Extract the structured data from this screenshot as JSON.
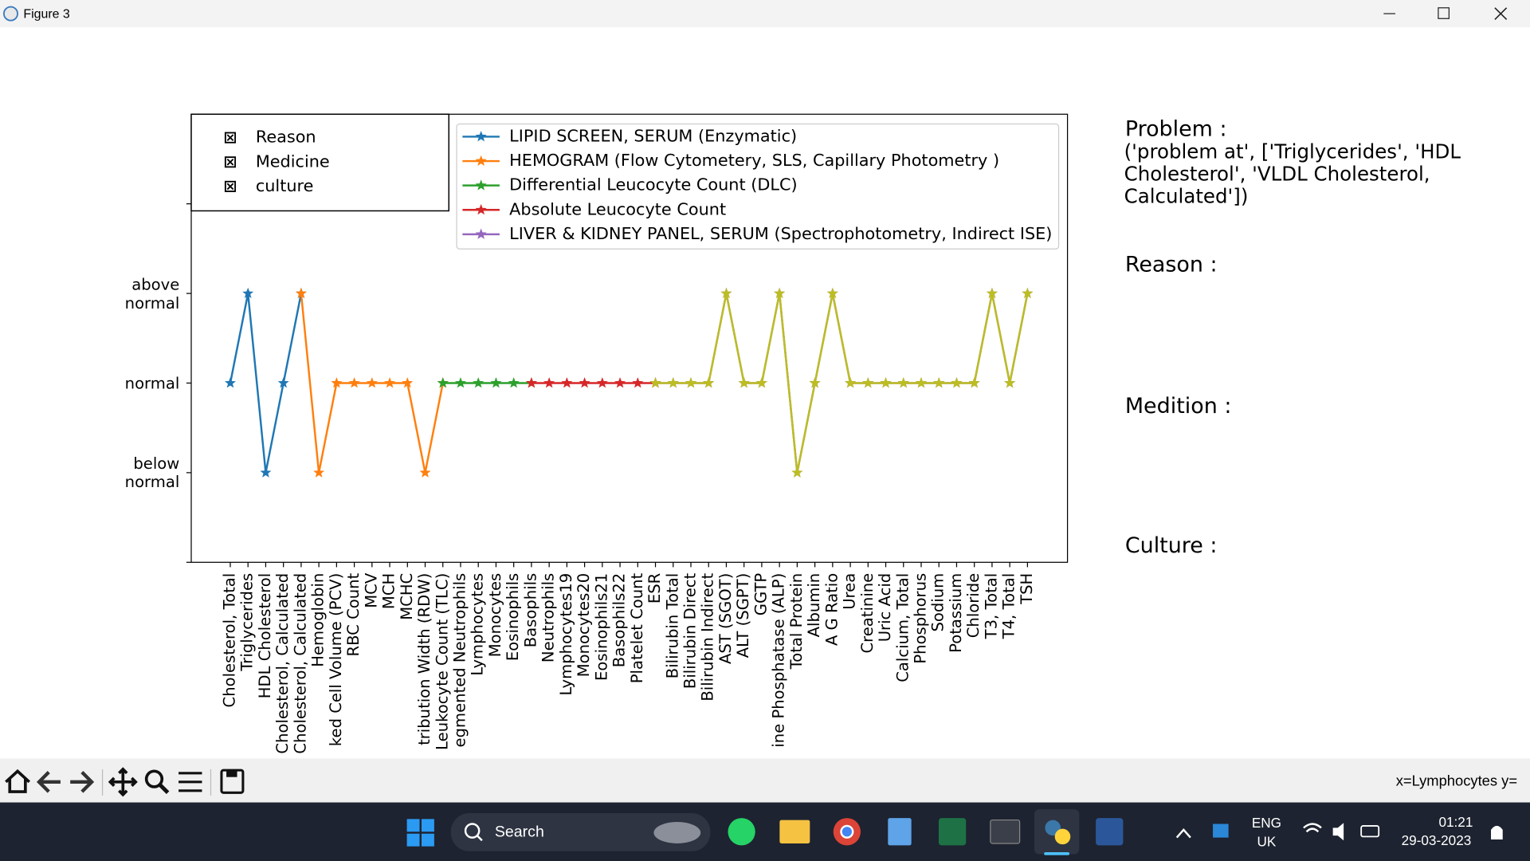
{
  "window": {
    "title": "Figure 3"
  },
  "chart_data": {
    "type": "line",
    "categories": [
      "Cholesterol, Total",
      "Triglycerides",
      "HDL Cholesterol",
      "Cholesterol, Calculated",
      "Cholesterol, Calculated",
      "Hemoglobin",
      "ked Cell Volume (PCV)",
      "RBC Count",
      "MCV",
      "MCH",
      "MCHC",
      "tribution Width (RDW)",
      "Leukocyte Count (TLC)",
      "egmented Neutrophils",
      "Lymphocytes",
      "Monocytes",
      "Eosinophils",
      "Basophils",
      "Neutrophils",
      "Lymphocytes19",
      "Monocytes20",
      "Eosinophils21",
      "Basophils22",
      "Platelet Count",
      "ESR",
      "Bilirubin Total",
      "Bilirubin Direct",
      "Bilirubin Indirect",
      "AST (SGOT)",
      "ALT (SGPT)",
      "GGTP",
      "ine Phosphatase (ALP)",
      "Total Protein",
      "Albumin",
      "A   G Ratio",
      "Urea",
      "Creatinine",
      "Uric Acid",
      "Calcium, Total",
      "Phosphorus",
      "Sodium",
      "Potassium",
      "Chloride",
      "T3, Total",
      "T4, Total",
      "TSH"
    ],
    "series": [
      {
        "name": "LIPID SCREEN, SERUM (Enzymatic)",
        "color": "#1f77b4",
        "values": [
          0,
          1,
          -1,
          0,
          1,
          null,
          null,
          null,
          null,
          null,
          null,
          null,
          null,
          null,
          null,
          null,
          null,
          null,
          null,
          null,
          null,
          null,
          null,
          null,
          null,
          null,
          null,
          null,
          null,
          null,
          null,
          null,
          null,
          null,
          null,
          null,
          null,
          null,
          null,
          null,
          null,
          null,
          null,
          null,
          null,
          null
        ]
      },
      {
        "name": "HEMOGRAM (Flow Cytometery, SLS, Capillary Photometry )",
        "color": "#ff7f0e",
        "values": [
          null,
          null,
          null,
          null,
          1,
          -1,
          0,
          0,
          0,
          0,
          0,
          -1,
          0,
          null,
          null,
          null,
          null,
          null,
          null,
          null,
          null,
          null,
          null,
          null,
          null,
          null,
          null,
          null,
          null,
          null,
          null,
          null,
          null,
          null,
          null,
          null,
          null,
          null,
          null,
          null,
          null,
          null,
          null,
          null,
          null,
          null
        ]
      },
      {
        "name": "Differential Leucocyte Count (DLC)",
        "color": "#2ca02c",
        "values": [
          null,
          null,
          null,
          null,
          null,
          null,
          null,
          null,
          null,
          null,
          null,
          null,
          0,
          0,
          0,
          0,
          0,
          0,
          null,
          null,
          null,
          null,
          null,
          null,
          null,
          null,
          null,
          null,
          null,
          null,
          null,
          null,
          null,
          null,
          null,
          null,
          null,
          null,
          null,
          null,
          null,
          null,
          null,
          null,
          null,
          null
        ]
      },
      {
        "name": "Absolute Leucocyte Count",
        "color": "#d62728",
        "values": [
          null,
          null,
          null,
          null,
          null,
          null,
          null,
          null,
          null,
          null,
          null,
          null,
          null,
          null,
          null,
          null,
          null,
          0,
          0,
          0,
          0,
          0,
          0,
          0,
          0,
          null,
          null,
          null,
          null,
          null,
          null,
          null,
          null,
          null,
          null,
          null,
          null,
          null,
          null,
          null,
          null,
          null,
          null,
          null,
          null,
          null
        ]
      },
      {
        "name": "LIVER & KIDNEY PANEL, SERUM (Spectrophotometry, Indirect ISE)",
        "color": "#9467bd",
        "values": [
          null,
          null,
          null,
          null,
          null,
          null,
          null,
          null,
          null,
          null,
          null,
          null,
          null,
          null,
          null,
          null,
          null,
          null,
          null,
          null,
          null,
          null,
          null,
          null,
          0,
          0,
          0,
          0,
          1,
          0,
          0,
          1,
          -1,
          0,
          1,
          0,
          0,
          0,
          0,
          0,
          0,
          0,
          0,
          1,
          0,
          1
        ]
      },
      {
        "color": "#bcbd22",
        "values": [
          null,
          null,
          null,
          null,
          null,
          null,
          null,
          null,
          null,
          null,
          null,
          null,
          null,
          null,
          null,
          null,
          null,
          null,
          null,
          null,
          null,
          null,
          null,
          null,
          0,
          0,
          0,
          0,
          1,
          0,
          0,
          1,
          -1,
          0,
          1,
          0,
          0,
          0,
          0,
          0,
          0,
          0,
          0,
          1,
          0,
          1
        ]
      }
    ],
    "ylim": [
      -2,
      3
    ],
    "yticks": [
      {
        "value": -2,
        "label": null
      },
      {
        "value": -1,
        "label": "below\nnormal"
      },
      {
        "value": 0,
        "label": "normal"
      },
      {
        "value": 1,
        "label": "above\nnormal"
      },
      {
        "value": 2,
        "label": null
      }
    ],
    "legend": "upper right",
    "text_legend": [
      "Reason",
      "Medicine",
      "culture"
    ]
  },
  "side_panel": {
    "problem_label": "Problem :",
    "problem_text": "('problem at', ['Triglycerides', 'HDL Cholesterol', 'VLDL Cholesterol, Calculated'])",
    "reason_label": "Reason :",
    "medition_label": "Medition :",
    "culture_label": "Culture :"
  },
  "toolbar": {
    "status": "x=Lymphocytes y="
  },
  "taskbar": {
    "search": "Search",
    "language": "ENG",
    "region": "UK",
    "time": "01:21",
    "date": "29-03-2023"
  }
}
